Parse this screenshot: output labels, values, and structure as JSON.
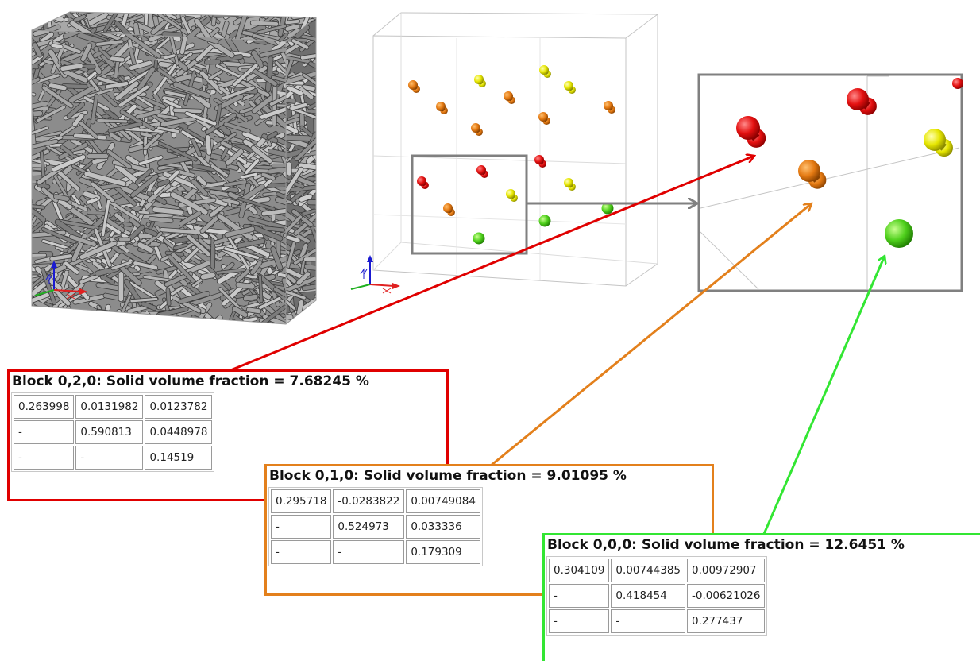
{
  "colors": {
    "red": "#e00000",
    "orange": "#e3801c",
    "green": "#33e633",
    "gray": "#808080"
  },
  "blocks": [
    {
      "id": "block-0-2-0",
      "color": "#e00000",
      "title": "Block 0,2,0: Solid volume fraction = 7.68245 %",
      "rows": [
        [
          "0.263998",
          "0.0131982",
          "0.0123782"
        ],
        [
          "-",
          "0.590813",
          "0.0448978"
        ],
        [
          "-",
          "-",
          "0.14519"
        ]
      ]
    },
    {
      "id": "block-0-1-0",
      "color": "#e3801c",
      "title": "Block 0,1,0: Solid volume fraction = 9.01095 %",
      "rows": [
        [
          "0.295718",
          "-0.0283822",
          "0.00749084"
        ],
        [
          "-",
          "0.524973",
          "0.033336"
        ],
        [
          "-",
          "-",
          "0.179309"
        ]
      ]
    },
    {
      "id": "block-0-0-0",
      "color": "#33e633",
      "title": "Block 0,0,0: Solid volume fraction = 12.6451 %",
      "rows": [
        [
          "0.304109",
          "0.00744385",
          "0.00972907"
        ],
        [
          "-",
          "0.418454",
          "-0.00621026"
        ],
        [
          "-",
          "-",
          "0.277437"
        ]
      ]
    }
  ],
  "axis_labels": [
    "Y",
    "X"
  ]
}
